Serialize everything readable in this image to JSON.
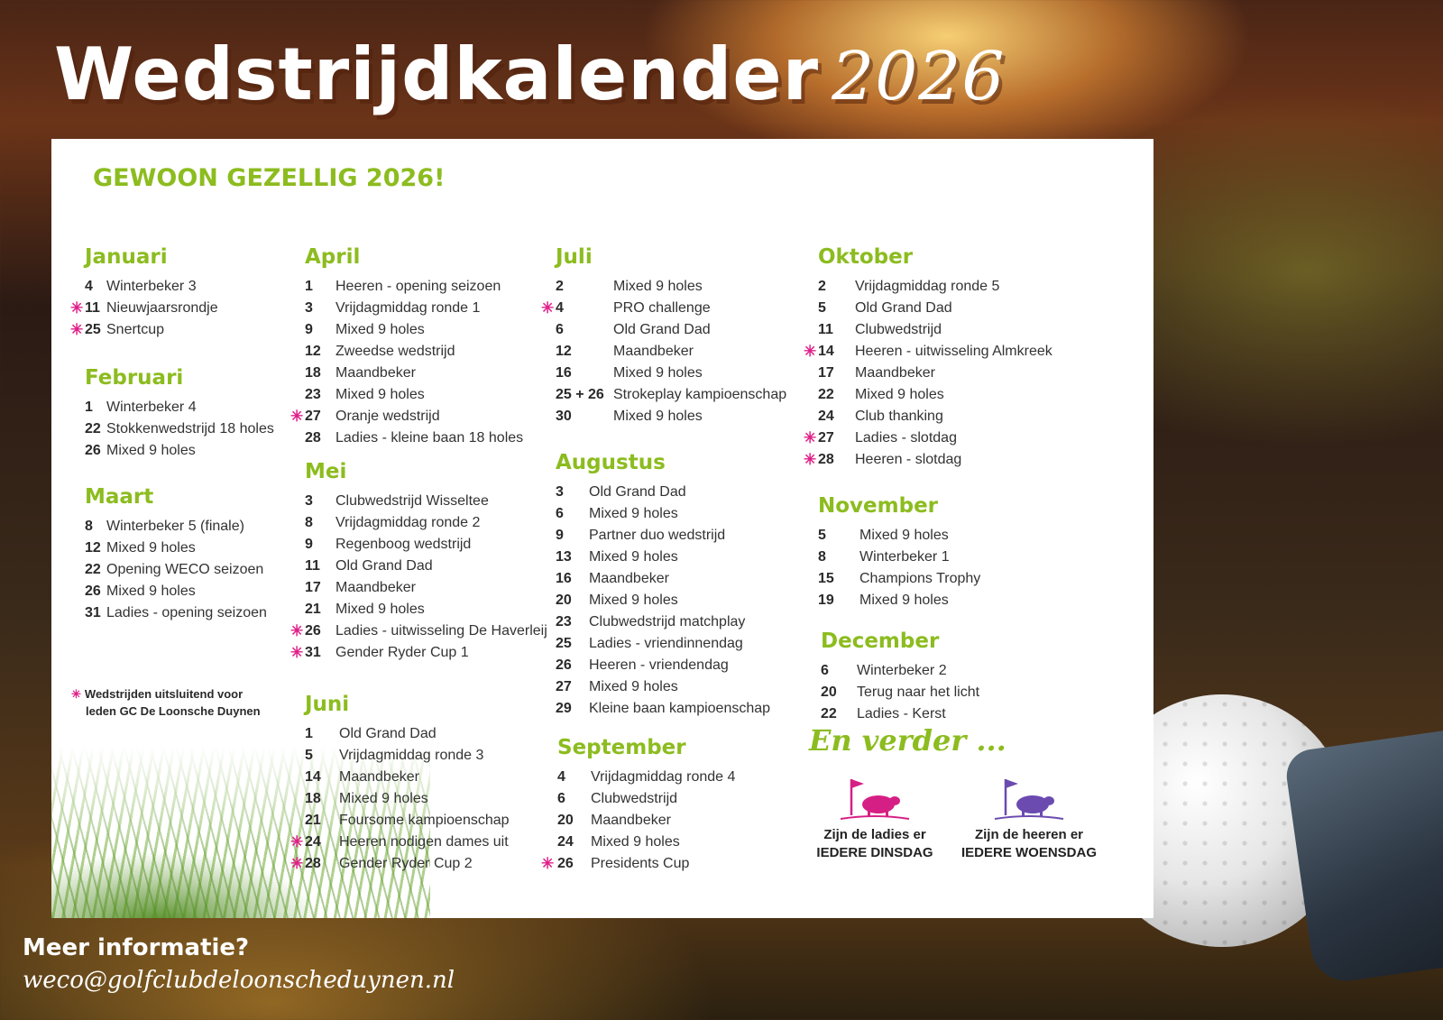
{
  "header": {
    "title": "Wedstrijdkalender",
    "year": "2026"
  },
  "subtitle": "GEWOON GEZELLIG 2026!",
  "colors": {
    "green": "#8cbc1f",
    "pink": "#e0208a",
    "purple": "#6b4bb0"
  },
  "months": {
    "januari": {
      "name": "Januari",
      "events": [
        {
          "day": "4",
          "name": "Winterbeker 3",
          "members_only": false
        },
        {
          "day": "11",
          "name": "Nieuwjaarsrondje",
          "members_only": true
        },
        {
          "day": "25",
          "name": "Snertcup",
          "members_only": true
        }
      ]
    },
    "februari": {
      "name": "Februari",
      "events": [
        {
          "day": "1",
          "name": "Winterbeker 4",
          "members_only": false
        },
        {
          "day": "22",
          "name": "Stokkenwedstrijd 18 holes",
          "members_only": false
        },
        {
          "day": "26",
          "name": "Mixed 9 holes",
          "members_only": false
        }
      ]
    },
    "maart": {
      "name": "Maart",
      "events": [
        {
          "day": "8",
          "name": "Winterbeker 5 (finale)",
          "members_only": false
        },
        {
          "day": "12",
          "name": "Mixed 9 holes",
          "members_only": false
        },
        {
          "day": "22",
          "name": "Opening WECO seizoen",
          "members_only": false
        },
        {
          "day": "26",
          "name": "Mixed 9 holes",
          "members_only": false
        },
        {
          "day": "31",
          "name": "Ladies - opening seizoen",
          "members_only": false
        }
      ]
    },
    "april": {
      "name": "April",
      "events": [
        {
          "day": "1",
          "name": "Heeren - opening seizoen",
          "members_only": false
        },
        {
          "day": "3",
          "name": "Vrijdagmiddag ronde 1",
          "members_only": false
        },
        {
          "day": "9",
          "name": "Mixed 9 holes",
          "members_only": false
        },
        {
          "day": "12",
          "name": "Zweedse wedstrijd",
          "members_only": false
        },
        {
          "day": "18",
          "name": "Maandbeker",
          "members_only": false
        },
        {
          "day": "23",
          "name": "Mixed 9 holes",
          "members_only": false
        },
        {
          "day": "27",
          "name": "Oranje wedstrijd",
          "members_only": true
        },
        {
          "day": "28",
          "name": "Ladies - kleine baan 18 holes",
          "members_only": false
        }
      ]
    },
    "mei": {
      "name": "Mei",
      "events": [
        {
          "day": "3",
          "name": "Clubwedstrijd Wisseltee",
          "members_only": false
        },
        {
          "day": "8",
          "name": "Vrijdagmiddag ronde 2",
          "members_only": false
        },
        {
          "day": "9",
          "name": "Regenboog wedstrijd",
          "members_only": false
        },
        {
          "day": "11",
          "name": "Old Grand Dad",
          "members_only": false
        },
        {
          "day": "17",
          "name": "Maandbeker",
          "members_only": false
        },
        {
          "day": "21",
          "name": "Mixed 9 holes",
          "members_only": false
        },
        {
          "day": "26",
          "name": "Ladies - uitwisseling De Haverleij",
          "members_only": true
        },
        {
          "day": "31",
          "name": "Gender Ryder Cup 1",
          "members_only": true
        }
      ]
    },
    "juni": {
      "name": "Juni",
      "events": [
        {
          "day": "1",
          "name": "Old Grand Dad",
          "members_only": false
        },
        {
          "day": "5",
          "name": "Vrijdagmiddag ronde 3",
          "members_only": false
        },
        {
          "day": "14",
          "name": "Maandbeker",
          "members_only": false
        },
        {
          "day": "18",
          "name": "Mixed 9 holes",
          "members_only": false
        },
        {
          "day": "21",
          "name": "Foursome kampioenschap",
          "members_only": false
        },
        {
          "day": "24",
          "name": "Heeren nodigen dames uit",
          "members_only": true
        },
        {
          "day": "28",
          "name": "Gender Ryder Cup 2",
          "members_only": true
        }
      ]
    },
    "juli": {
      "name": "Juli",
      "events": [
        {
          "day": "2",
          "name": "Mixed 9 holes",
          "members_only": false
        },
        {
          "day": "4",
          "name": "PRO challenge",
          "members_only": true
        },
        {
          "day": "6",
          "name": "Old Grand Dad",
          "members_only": false
        },
        {
          "day": "12",
          "name": "Maandbeker",
          "members_only": false
        },
        {
          "day": "16",
          "name": "Mixed 9 holes",
          "members_only": false
        },
        {
          "day": "25 + 26",
          "name": "Strokeplay kampioenschap",
          "members_only": false
        },
        {
          "day": "30",
          "name": "Mixed 9 holes",
          "members_only": false
        }
      ]
    },
    "augustus": {
      "name": "Augustus",
      "events": [
        {
          "day": "3",
          "name": "Old Grand Dad",
          "members_only": false
        },
        {
          "day": "6",
          "name": "Mixed 9 holes",
          "members_only": false
        },
        {
          "day": "9",
          "name": "Partner duo wedstrijd",
          "members_only": false
        },
        {
          "day": "13",
          "name": "Mixed 9 holes",
          "members_only": false
        },
        {
          "day": "16",
          "name": "Maandbeker",
          "members_only": false
        },
        {
          "day": "20",
          "name": "Mixed 9 holes",
          "members_only": false
        },
        {
          "day": "23",
          "name": "Clubwedstrijd matchplay",
          "members_only": false
        },
        {
          "day": "25",
          "name": "Ladies - vriendinnendag",
          "members_only": false
        },
        {
          "day": "26",
          "name": "Heeren - vriendendag",
          "members_only": false
        },
        {
          "day": "27",
          "name": "Mixed 9 holes",
          "members_only": false
        },
        {
          "day": "29",
          "name": "Kleine baan kampioenschap",
          "members_only": false
        }
      ]
    },
    "september": {
      "name": "September",
      "events": [
        {
          "day": "4",
          "name": "Vrijdagmiddag ronde 4",
          "members_only": false
        },
        {
          "day": "6",
          "name": "Clubwedstrijd",
          "members_only": false
        },
        {
          "day": "20",
          "name": "Maandbeker",
          "members_only": false
        },
        {
          "day": "24",
          "name": "Mixed 9 holes",
          "members_only": false
        },
        {
          "day": "26",
          "name": "Presidents Cup",
          "members_only": true
        }
      ]
    },
    "oktober": {
      "name": "Oktober",
      "events": [
        {
          "day": "2",
          "name": "Vrijdagmiddag ronde 5",
          "members_only": false
        },
        {
          "day": "5",
          "name": "Old Grand Dad",
          "members_only": false
        },
        {
          "day": "11",
          "name": "Clubwedstrijd",
          "members_only": false
        },
        {
          "day": "14",
          "name": "Heeren - uitwisseling Almkreek",
          "members_only": true
        },
        {
          "day": "17",
          "name": "Maandbeker",
          "members_only": false
        },
        {
          "day": "22",
          "name": "Mixed 9 holes",
          "members_only": false
        },
        {
          "day": "24",
          "name": "Club thanking",
          "members_only": false
        },
        {
          "day": "27",
          "name": "Ladies - slotdag",
          "members_only": true
        },
        {
          "day": "28",
          "name": "Heeren - slotdag",
          "members_only": true
        }
      ]
    },
    "november": {
      "name": "November",
      "events": [
        {
          "day": "5",
          "name": "Mixed 9 holes",
          "members_only": false
        },
        {
          "day": "8",
          "name": "Winterbeker 1",
          "members_only": false
        },
        {
          "day": "15",
          "name": "Champions Trophy",
          "members_only": false
        },
        {
          "day": "19",
          "name": "Mixed 9 holes",
          "members_only": false
        }
      ]
    },
    "december": {
      "name": "December",
      "events": [
        {
          "day": "6",
          "name": "Winterbeker 2",
          "members_only": false
        },
        {
          "day": "20",
          "name": "Terug naar het licht",
          "members_only": false
        },
        {
          "day": "22",
          "name": "Ladies - Kerst",
          "members_only": false
        }
      ]
    }
  },
  "legend": {
    "symbol": "✳",
    "line1": "Wedstrijden uitsluitend voor",
    "line2": "leden GC De Loonsche Duynen"
  },
  "verder": "En verder ...",
  "ladies": {
    "line1": "Zijn de ladies er",
    "line2": "IEDERE DINSDAG",
    "icon": "flag-sheep-icon"
  },
  "heeren": {
    "line1": "Zijn de heeren er",
    "line2": "IEDERE WOENSDAG",
    "icon": "flag-sheep-icon"
  },
  "footer": {
    "info_title": "Meer informatie?",
    "email": "weco@golfclubdeloonscheduynen.nl"
  }
}
